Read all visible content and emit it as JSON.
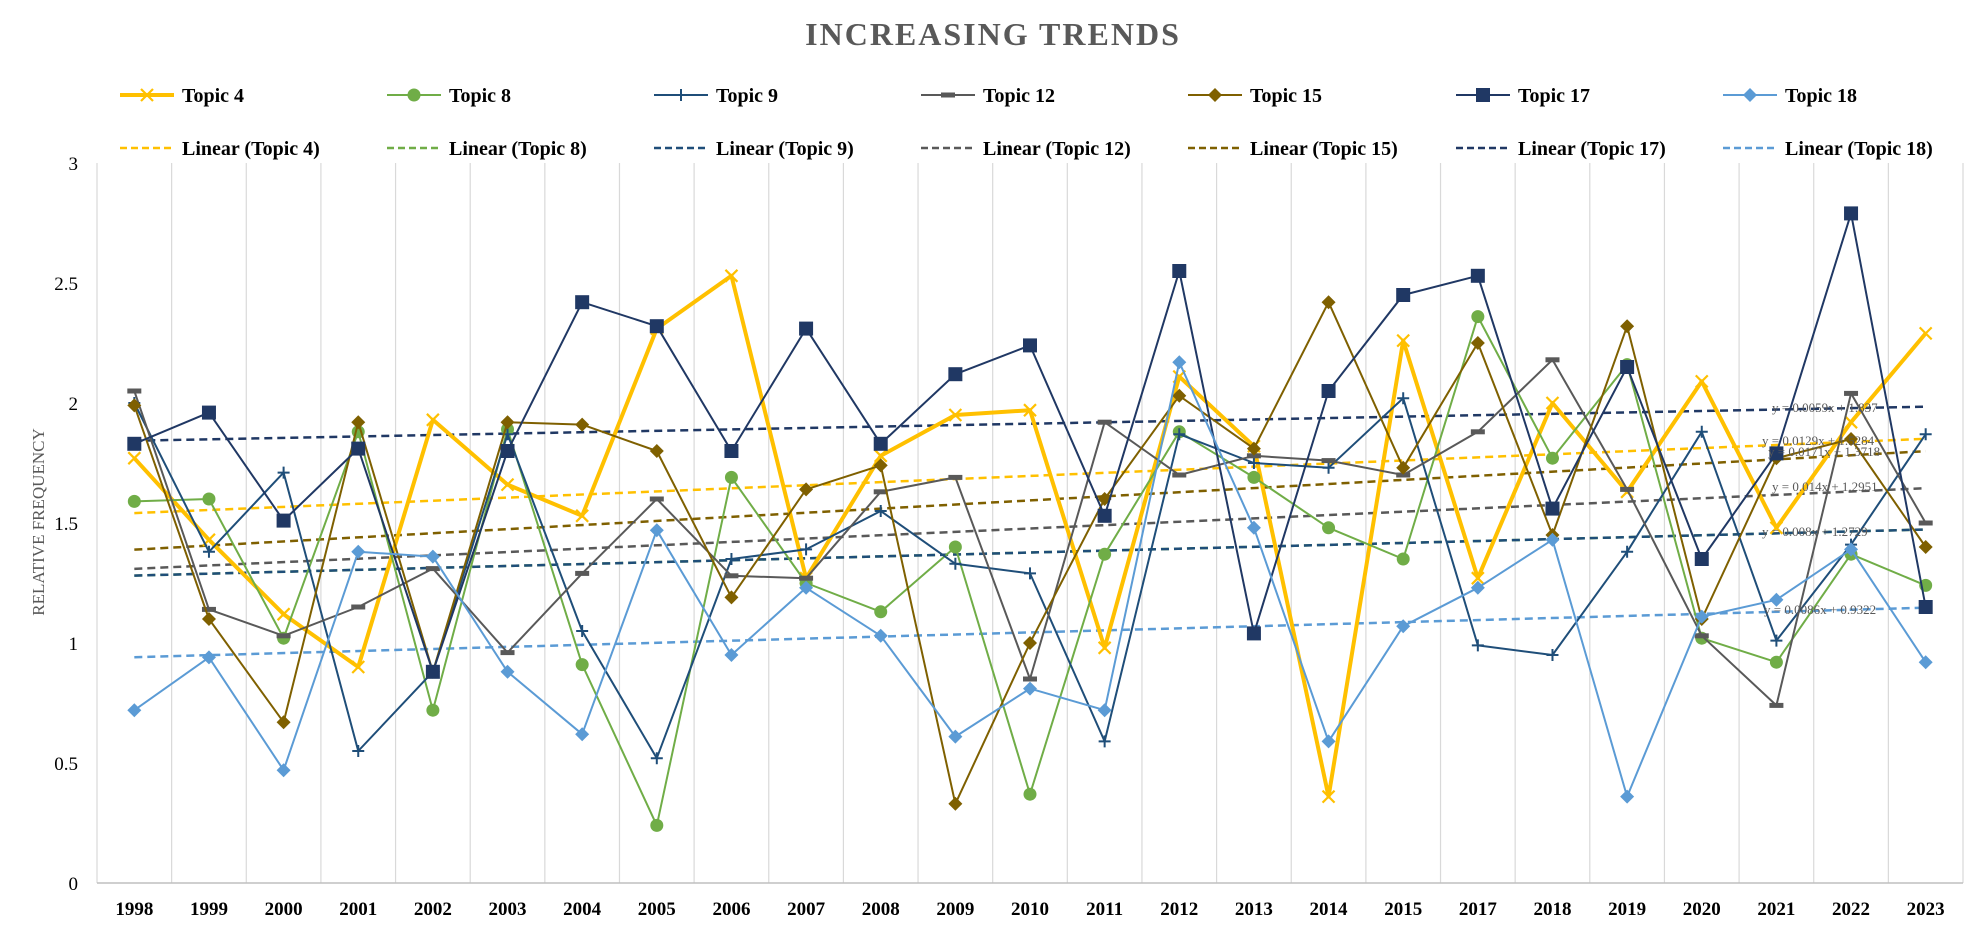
{
  "chart_data": {
    "type": "line",
    "title": "INCREASING TRENDS",
    "ylabel": "RELATIVE FREQUENCY",
    "xlabel": "",
    "ylim": [
      0,
      3
    ],
    "yticks": [
      "0",
      "0.5",
      "1",
      "1.5",
      "2",
      "2.5",
      "3"
    ],
    "grid": "vertical",
    "legend_position": "top",
    "categories": [
      "1998",
      "1999",
      "2000",
      "2001",
      "2002",
      "2003",
      "2004",
      "2005",
      "2006",
      "2007",
      "2008",
      "2009",
      "2010",
      "2011",
      "2012",
      "2013",
      "2014",
      "2015",
      "2017",
      "2018",
      "2019",
      "2020",
      "2021",
      "2022",
      "2023"
    ],
    "series": [
      {
        "name": "Topic 4",
        "color": "#FFC000",
        "marker": "x",
        "width": 4,
        "values": [
          1.77,
          1.43,
          1.12,
          0.9,
          1.93,
          1.66,
          1.53,
          2.31,
          2.53,
          1.27,
          1.78,
          1.95,
          1.97,
          0.98,
          2.11,
          1.82,
          0.36,
          2.26,
          1.27,
          2.0,
          1.63,
          2.09,
          1.48,
          1.92,
          2.29
        ]
      },
      {
        "name": "Topic 8",
        "color": "#70AD47",
        "marker": "circle",
        "width": 2,
        "values": [
          1.59,
          1.6,
          1.02,
          1.88,
          0.72,
          1.89,
          0.91,
          0.24,
          1.69,
          1.25,
          1.13,
          1.4,
          0.37,
          1.37,
          1.88,
          1.69,
          1.48,
          1.35,
          2.36,
          1.77,
          2.16,
          1.02,
          0.92,
          1.37,
          1.24
        ]
      },
      {
        "name": "Topic 9",
        "color": "#1F4E79",
        "marker": "plus",
        "width": 2,
        "values": [
          2.0,
          1.38,
          1.71,
          0.55,
          0.88,
          1.87,
          1.05,
          0.52,
          1.35,
          1.39,
          1.55,
          1.33,
          1.29,
          0.59,
          1.87,
          1.75,
          1.73,
          2.02,
          0.99,
          0.95,
          1.38,
          1.88,
          1.01,
          1.41,
          1.87
        ]
      },
      {
        "name": "Topic 12",
        "color": "#595959",
        "marker": "dash",
        "width": 2,
        "values": [
          2.05,
          1.14,
          1.03,
          1.15,
          1.31,
          0.96,
          1.29,
          1.6,
          1.28,
          1.27,
          1.63,
          1.69,
          0.85,
          1.92,
          1.7,
          1.78,
          1.76,
          1.7,
          1.88,
          2.18,
          1.64,
          1.03,
          0.74,
          2.04,
          1.5
        ]
      },
      {
        "name": "Topic 15",
        "color": "#7F6000",
        "marker": "diamond",
        "width": 2,
        "values": [
          1.99,
          1.1,
          0.67,
          1.92,
          0.88,
          1.92,
          1.91,
          1.8,
          1.19,
          1.64,
          1.74,
          0.33,
          1.0,
          1.6,
          2.03,
          1.81,
          2.42,
          1.73,
          2.25,
          1.45,
          2.32,
          1.1,
          1.77,
          1.85,
          1.4
        ]
      },
      {
        "name": "Topic 17",
        "color": "#203864",
        "marker": "square",
        "width": 2,
        "values": [
          1.83,
          1.96,
          1.51,
          1.81,
          0.88,
          1.8,
          2.42,
          2.32,
          1.8,
          2.31,
          1.83,
          2.12,
          2.24,
          1.53,
          2.55,
          1.04,
          2.05,
          2.45,
          2.53,
          1.56,
          2.15,
          1.35,
          1.79,
          2.79,
          1.15
        ]
      },
      {
        "name": "Topic 18",
        "color": "#5B9BD5",
        "marker": "diamond",
        "width": 2,
        "values": [
          0.72,
          0.94,
          0.47,
          1.38,
          1.36,
          0.88,
          0.62,
          1.47,
          0.95,
          1.23,
          1.03,
          0.61,
          0.81,
          0.72,
          2.17,
          1.48,
          0.59,
          1.07,
          1.23,
          1.43,
          0.36,
          1.11,
          1.18,
          1.39,
          0.92
        ]
      }
    ],
    "trendlines": [
      {
        "name": "Linear (Topic 4)",
        "color": "#FFC000",
        "slope": 0.0129,
        "intercept": 1.5284,
        "equation": "y = 0.0129x + 1.5284"
      },
      {
        "name": "Linear (Topic 8)",
        "color": "#70AD47",
        "slope": 0.008,
        "intercept": 1.2729,
        "equation": "y = 0.008x + 1.2729"
      },
      {
        "name": "Linear (Topic 9)",
        "color": "#1F4E79",
        "slope": 0.008,
        "intercept": 1.2729,
        "equation": ""
      },
      {
        "name": "Linear (Topic 12)",
        "color": "#595959",
        "slope": 0.014,
        "intercept": 1.2951,
        "equation": "y = 0.014x + 1.2951"
      },
      {
        "name": "Linear (Topic 15)",
        "color": "#7F6000",
        "slope": 0.0171,
        "intercept": 1.3718,
        "equation": "y = 0.0171x + 1.3718"
      },
      {
        "name": "Linear (Topic 17)",
        "color": "#203864",
        "slope": 0.0059,
        "intercept": 1.837,
        "equation": "y = 0.0059x + 1.837"
      },
      {
        "name": "Linear (Topic 18)",
        "color": "#5B9BD5",
        "slope": 0.0086,
        "intercept": 0.9322,
        "equation": "y = 0.0086x + 0.9322"
      }
    ]
  }
}
